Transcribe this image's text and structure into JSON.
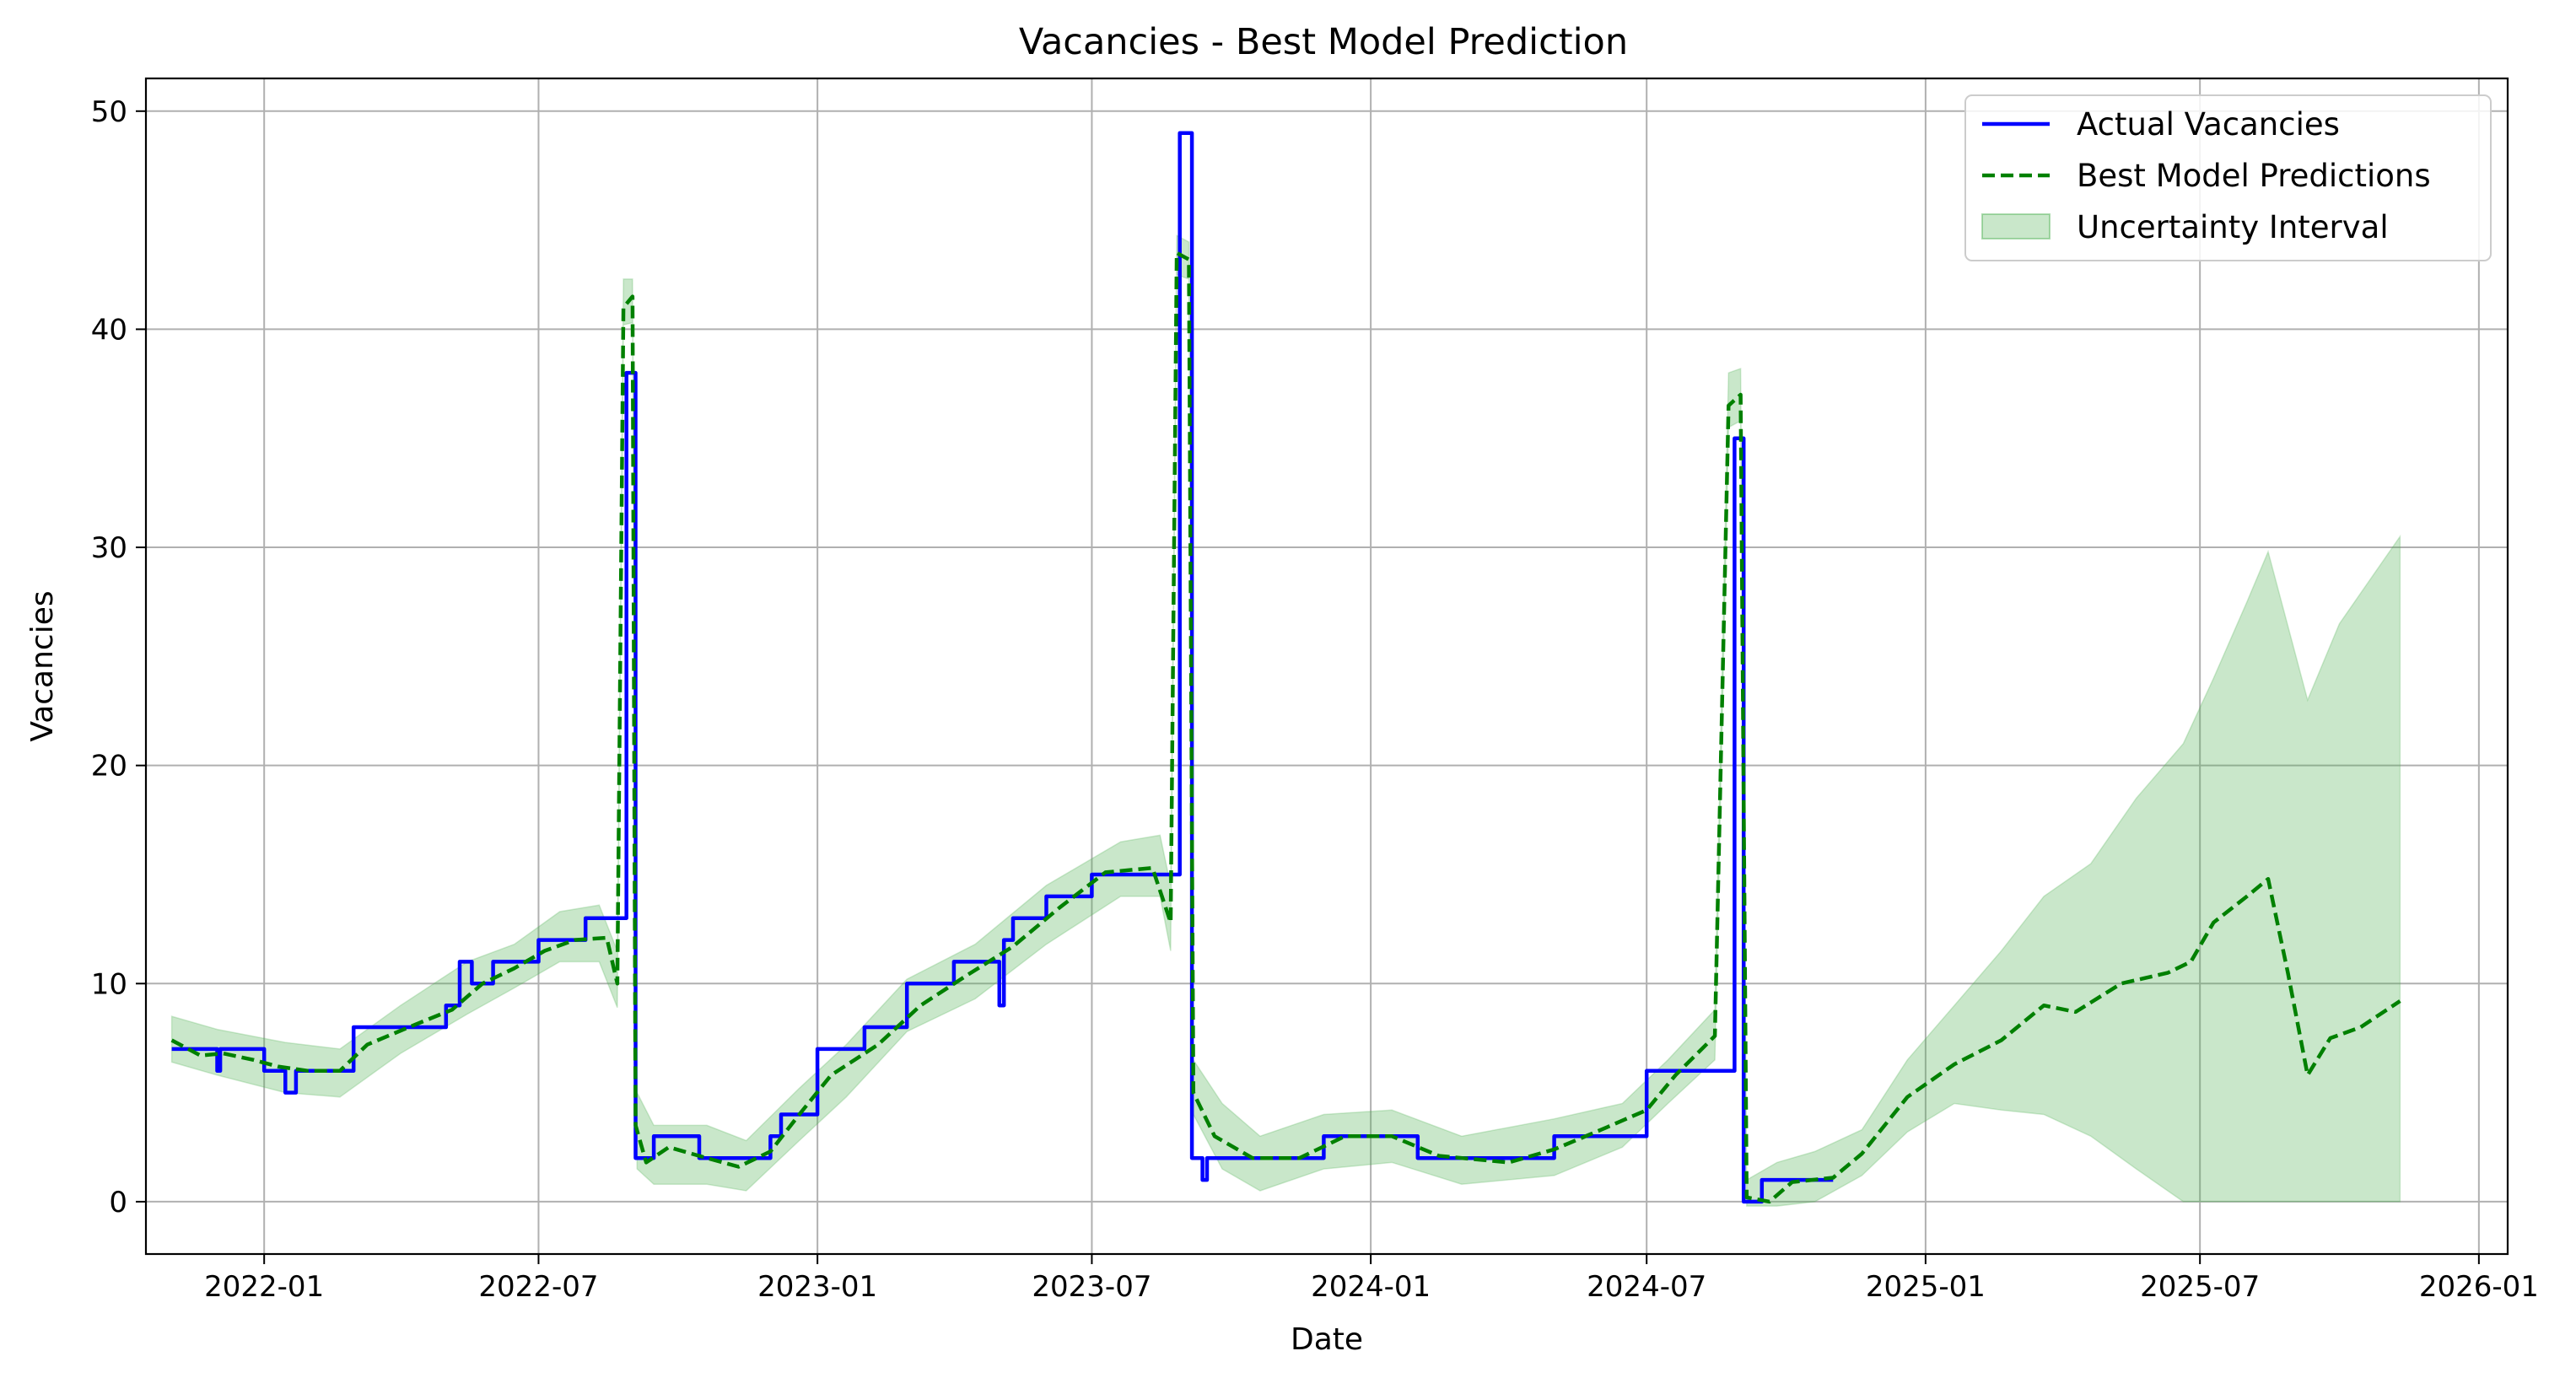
{
  "chart_data": {
    "type": "line",
    "title": "Vacancies - Best Model Prediction",
    "xlabel": "Date",
    "ylabel": "Vacancies",
    "xlim": [
      "2021-10-15",
      "2026-01-20"
    ],
    "ylim": [
      -2.4,
      51.5
    ],
    "x_ticks": [
      "2022-01",
      "2022-07",
      "2023-01",
      "2023-07",
      "2024-01",
      "2024-07",
      "2025-01",
      "2025-07",
      "2026-01"
    ],
    "y_ticks": [
      0,
      10,
      20,
      30,
      40,
      50
    ],
    "grid": true,
    "legend_position": "top-right",
    "series": [
      {
        "name": "Actual Vacancies",
        "style": "solid",
        "color": "#0000ff",
        "points": [
          [
            "2021-11-01",
            7
          ],
          [
            "2021-12-01",
            7
          ],
          [
            "2021-12-01",
            6
          ],
          [
            "2021-12-03",
            6
          ],
          [
            "2021-12-03",
            7
          ],
          [
            "2022-01-01",
            7
          ],
          [
            "2022-01-01",
            6
          ],
          [
            "2022-01-15",
            6
          ],
          [
            "2022-01-15",
            5
          ],
          [
            "2022-01-22",
            5
          ],
          [
            "2022-01-22",
            6
          ],
          [
            "2022-03-01",
            6
          ],
          [
            "2022-03-01",
            8
          ],
          [
            "2022-05-01",
            8
          ],
          [
            "2022-05-01",
            9
          ],
          [
            "2022-05-10",
            9
          ],
          [
            "2022-05-10",
            11
          ],
          [
            "2022-05-18",
            11
          ],
          [
            "2022-05-18",
            10
          ],
          [
            "2022-06-01",
            10
          ],
          [
            "2022-06-01",
            11
          ],
          [
            "2022-07-01",
            11
          ],
          [
            "2022-07-01",
            12
          ],
          [
            "2022-08-01",
            12
          ],
          [
            "2022-08-01",
            13
          ],
          [
            "2022-08-28",
            13
          ],
          [
            "2022-08-28",
            38
          ],
          [
            "2022-09-03",
            38
          ],
          [
            "2022-09-03",
            2
          ],
          [
            "2022-09-15",
            2
          ],
          [
            "2022-09-15",
            3
          ],
          [
            "2022-10-15",
            3
          ],
          [
            "2022-10-15",
            2
          ],
          [
            "2022-12-01",
            2
          ],
          [
            "2022-12-01",
            3
          ],
          [
            "2022-12-08",
            3
          ],
          [
            "2022-12-08",
            4
          ],
          [
            "2023-01-01",
            4
          ],
          [
            "2023-01-01",
            7
          ],
          [
            "2023-02-01",
            7
          ],
          [
            "2023-02-01",
            8
          ],
          [
            "2023-03-01",
            8
          ],
          [
            "2023-03-01",
            10
          ],
          [
            "2023-04-01",
            10
          ],
          [
            "2023-04-01",
            11
          ],
          [
            "2023-05-01",
            11
          ],
          [
            "2023-05-01",
            9
          ],
          [
            "2023-05-04",
            9
          ],
          [
            "2023-05-04",
            12
          ],
          [
            "2023-05-10",
            12
          ],
          [
            "2023-05-10",
            13
          ],
          [
            "2023-06-01",
            13
          ],
          [
            "2023-06-01",
            14
          ],
          [
            "2023-07-01",
            14
          ],
          [
            "2023-07-01",
            15
          ],
          [
            "2023-08-28",
            15
          ],
          [
            "2023-08-28",
            49
          ],
          [
            "2023-09-05",
            49
          ],
          [
            "2023-09-05",
            2
          ],
          [
            "2023-09-12",
            2
          ],
          [
            "2023-09-12",
            1
          ],
          [
            "2023-09-15",
            1
          ],
          [
            "2023-09-15",
            2
          ],
          [
            "2023-12-01",
            2
          ],
          [
            "2023-12-01",
            3
          ],
          [
            "2024-02-01",
            3
          ],
          [
            "2024-02-01",
            2
          ],
          [
            "2024-05-01",
            2
          ],
          [
            "2024-05-01",
            3
          ],
          [
            "2024-07-01",
            3
          ],
          [
            "2024-07-01",
            6
          ],
          [
            "2024-08-28",
            6
          ],
          [
            "2024-08-28",
            35
          ],
          [
            "2024-09-03",
            35
          ],
          [
            "2024-09-03",
            0
          ],
          [
            "2024-09-15",
            0
          ],
          [
            "2024-09-15",
            1
          ],
          [
            "2024-11-01",
            1
          ]
        ]
      },
      {
        "name": "Best Model Predictions",
        "style": "dashed",
        "color": "#008000",
        "points": [
          [
            "2021-11-01",
            7.4
          ],
          [
            "2021-11-20",
            6.7
          ],
          [
            "2021-12-05",
            6.8
          ],
          [
            "2021-12-25",
            6.5
          ],
          [
            "2022-01-10",
            6.2
          ],
          [
            "2022-01-30",
            6.0
          ],
          [
            "2022-02-20",
            6.0
          ],
          [
            "2022-03-10",
            7.2
          ],
          [
            "2022-04-10",
            8.1
          ],
          [
            "2022-05-05",
            8.8
          ],
          [
            "2022-05-25",
            10.0
          ],
          [
            "2022-06-15",
            10.7
          ],
          [
            "2022-07-05",
            11.5
          ],
          [
            "2022-07-25",
            12.0
          ],
          [
            "2022-08-15",
            12.1
          ],
          [
            "2022-08-22",
            10.0
          ],
          [
            "2022-08-26",
            41.0
          ],
          [
            "2022-09-01",
            41.5
          ],
          [
            "2022-09-03",
            3.5
          ],
          [
            "2022-09-10",
            1.8
          ],
          [
            "2022-09-25",
            2.5
          ],
          [
            "2022-10-20",
            2.0
          ],
          [
            "2022-11-10",
            1.6
          ],
          [
            "2022-12-01",
            2.3
          ],
          [
            "2022-12-20",
            4.0
          ],
          [
            "2023-01-10",
            5.8
          ],
          [
            "2023-02-10",
            7.2
          ],
          [
            "2023-03-10",
            9.0
          ],
          [
            "2023-04-10",
            10.4
          ],
          [
            "2023-05-10",
            11.7
          ],
          [
            "2023-06-10",
            13.5
          ],
          [
            "2023-07-10",
            15.1
          ],
          [
            "2023-08-10",
            15.3
          ],
          [
            "2023-08-22",
            12.8
          ],
          [
            "2023-08-26",
            43.5
          ],
          [
            "2023-09-03",
            43.2
          ],
          [
            "2023-09-06",
            5.0
          ],
          [
            "2023-09-20",
            3.0
          ],
          [
            "2023-10-15",
            2.0
          ],
          [
            "2023-11-15",
            2.0
          ],
          [
            "2023-12-15",
            3.0
          ],
          [
            "2024-01-15",
            3.0
          ],
          [
            "2024-02-15",
            2.1
          ],
          [
            "2024-04-01",
            1.8
          ],
          [
            "2024-05-01",
            2.4
          ],
          [
            "2024-06-01",
            3.3
          ],
          [
            "2024-07-01",
            4.2
          ],
          [
            "2024-07-20",
            5.8
          ],
          [
            "2024-08-15",
            7.6
          ],
          [
            "2024-08-24",
            36.5
          ],
          [
            "2024-09-01",
            37.0
          ],
          [
            "2024-09-05",
            0.2
          ],
          [
            "2024-09-20",
            0.0
          ],
          [
            "2024-10-05",
            0.9
          ],
          [
            "2024-11-01",
            1.1
          ],
          [
            "2024-11-20",
            2.2
          ],
          [
            "2024-12-20",
            4.8
          ],
          [
            "2025-01-20",
            6.3
          ],
          [
            "2025-02-20",
            7.4
          ],
          [
            "2025-03-20",
            9.0
          ],
          [
            "2025-04-10",
            8.7
          ],
          [
            "2025-05-10",
            10.0
          ],
          [
            "2025-06-10",
            10.5
          ],
          [
            "2025-06-25",
            11.0
          ],
          [
            "2025-07-10",
            12.8
          ],
          [
            "2025-08-01",
            14.0
          ],
          [
            "2025-08-15",
            14.8
          ],
          [
            "2025-08-28",
            10.5
          ],
          [
            "2025-09-10",
            5.8
          ],
          [
            "2025-09-25",
            7.5
          ],
          [
            "2025-10-15",
            8.0
          ],
          [
            "2025-11-10",
            9.2
          ]
        ]
      }
    ],
    "band": {
      "name": "Uncertainty Interval",
      "color": "#4caf50",
      "opacity": 0.3,
      "points": [
        [
          "2021-11-01",
          6.4,
          8.5
        ],
        [
          "2021-12-01",
          5.8,
          7.9
        ],
        [
          "2022-01-15",
          5.0,
          7.3
        ],
        [
          "2022-02-20",
          4.8,
          7.0
        ],
        [
          "2022-04-01",
          6.8,
          9.0
        ],
        [
          "2022-05-15",
          8.6,
          11.0
        ],
        [
          "2022-06-15",
          9.8,
          11.8
        ],
        [
          "2022-07-15",
          11.0,
          13.3
        ],
        [
          "2022-08-10",
          11.0,
          13.6
        ],
        [
          "2022-08-22",
          8.9,
          11.5
        ],
        [
          "2022-08-26",
          40.2,
          42.3
        ],
        [
          "2022-09-01",
          40.3,
          42.3
        ],
        [
          "2022-09-04",
          1.5,
          5.0
        ],
        [
          "2022-09-15",
          0.8,
          3.5
        ],
        [
          "2022-10-20",
          0.8,
          3.5
        ],
        [
          "2022-11-15",
          0.5,
          2.8
        ],
        [
          "2022-12-20",
          2.8,
          5.2
        ],
        [
          "2023-01-20",
          4.8,
          7.2
        ],
        [
          "2023-03-01",
          7.8,
          10.2
        ],
        [
          "2023-04-15",
          9.3,
          11.8
        ],
        [
          "2023-06-01",
          11.8,
          14.5
        ],
        [
          "2023-07-20",
          14.0,
          16.5
        ],
        [
          "2023-08-15",
          14.0,
          16.8
        ],
        [
          "2023-08-22",
          11.5,
          14.5
        ],
        [
          "2023-08-26",
          42.5,
          44.3
        ],
        [
          "2023-09-03",
          42.3,
          44.0
        ],
        [
          "2023-09-06",
          4.0,
          6.5
        ],
        [
          "2023-09-25",
          1.5,
          4.5
        ],
        [
          "2023-10-20",
          0.5,
          3.0
        ],
        [
          "2023-12-01",
          1.5,
          4.0
        ],
        [
          "2024-01-15",
          1.8,
          4.2
        ],
        [
          "2024-03-01",
          0.8,
          3.0
        ],
        [
          "2024-05-01",
          1.2,
          3.8
        ],
        [
          "2024-06-15",
          2.5,
          4.5
        ],
        [
          "2024-07-15",
          4.5,
          6.5
        ],
        [
          "2024-08-15",
          6.5,
          8.8
        ],
        [
          "2024-08-24",
          35.5,
          38.0
        ],
        [
          "2024-09-01",
          35.8,
          38.2
        ],
        [
          "2024-09-05",
          -0.2,
          1.0
        ],
        [
          "2024-09-25",
          -0.2,
          1.8
        ],
        [
          "2024-10-20",
          0.0,
          2.3
        ],
        [
          "2024-11-20",
          1.2,
          3.3
        ],
        [
          "2024-12-20",
          3.2,
          6.5
        ],
        [
          "2025-01-20",
          4.5,
          9.0
        ],
        [
          "2025-02-20",
          4.2,
          11.5
        ],
        [
          "2025-03-20",
          4.0,
          14.0
        ],
        [
          "2025-04-20",
          3.0,
          15.5
        ],
        [
          "2025-05-20",
          1.5,
          18.5
        ],
        [
          "2025-06-20",
          0.0,
          21.0
        ],
        [
          "2025-07-10",
          0.0,
          24.0
        ],
        [
          "2025-08-01",
          0.0,
          27.5
        ],
        [
          "2025-08-15",
          0.0,
          29.8
        ],
        [
          "2025-09-10",
          0.0,
          23.0
        ],
        [
          "2025-10-01",
          0.0,
          26.5
        ],
        [
          "2025-11-10",
          0.0,
          30.5
        ]
      ]
    }
  }
}
